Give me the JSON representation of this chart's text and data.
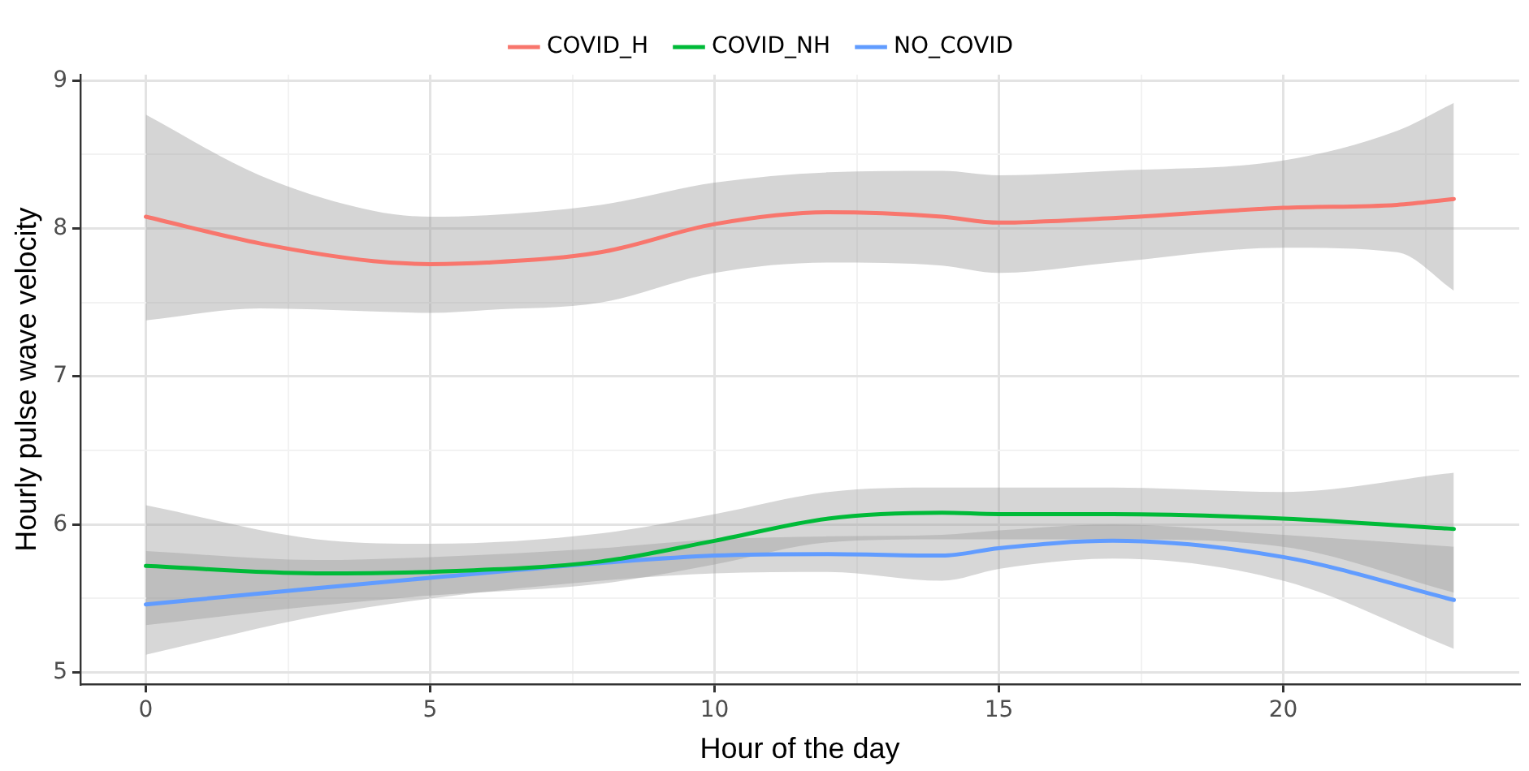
{
  "chart_data": {
    "type": "line",
    "xlabel": "Hour of the day",
    "ylabel": "Hourly pulse wave velocity",
    "xlim": [
      -1.15,
      24.15
    ],
    "xticks": [
      0,
      {
        "value": 2.5,
        "label": null
      },
      5,
      {
        "value": 7.5,
        "label": null
      },
      10,
      {
        "value": 12.5,
        "label": null
      },
      15,
      {
        "value": 17.5,
        "label": null
      },
      20,
      {
        "value": 22.5,
        "label": null
      }
    ],
    "ylim": [
      4.92,
      9.04
    ],
    "yticks": [
      5,
      {
        "value": 5.5,
        "label": null
      },
      6,
      {
        "value": 6.5,
        "label": null
      },
      7,
      {
        "value": 7.5,
        "label": null
      },
      8,
      {
        "value": 8.5,
        "label": null
      },
      9
    ],
    "grid": true,
    "legend": "top",
    "marker": "none",
    "line_style": "solid",
    "series": [
      {
        "name": "COVID_H",
        "color": "#f8766d",
        "x": [
          0,
          2,
          4,
          5,
          6,
          8,
          10,
          12,
          14,
          15,
          17,
          20,
          22,
          23
        ],
        "values": [
          8.08,
          7.9,
          7.78,
          7.76,
          7.77,
          7.84,
          8.03,
          8.11,
          8.08,
          8.04,
          8.07,
          8.14,
          8.16,
          8.2
        ],
        "lower": [
          7.38,
          7.46,
          7.44,
          7.43,
          7.45,
          7.5,
          7.7,
          7.77,
          7.75,
          7.7,
          7.77,
          7.87,
          7.84,
          7.58
        ],
        "upper": [
          8.77,
          8.36,
          8.12,
          8.08,
          8.09,
          8.16,
          8.31,
          8.38,
          8.39,
          8.36,
          8.39,
          8.46,
          8.66,
          8.85
        ]
      },
      {
        "name": "COVID_NH",
        "color": "#00ba38",
        "x": [
          0,
          3,
          5,
          8,
          10,
          12,
          14,
          15,
          17,
          20,
          23
        ],
        "values": [
          5.72,
          5.67,
          5.68,
          5.75,
          5.89,
          6.04,
          6.08,
          6.07,
          6.07,
          6.04,
          5.97
        ],
        "lower": [
          5.32,
          5.45,
          5.52,
          5.6,
          5.73,
          5.88,
          5.9,
          5.9,
          5.9,
          5.85,
          5.54
        ],
        "upper": [
          6.13,
          5.9,
          5.87,
          5.94,
          6.07,
          6.22,
          6.25,
          6.25,
          6.25,
          6.22,
          6.35
        ]
      },
      {
        "name": "NO_COVID",
        "color": "#619cff",
        "x": [
          0,
          3,
          5,
          8,
          10,
          12,
          14,
          15,
          17,
          20,
          23
        ],
        "values": [
          5.46,
          5.57,
          5.64,
          5.74,
          5.79,
          5.8,
          5.79,
          5.84,
          5.89,
          5.78,
          5.49
        ],
        "lower": [
          5.12,
          5.38,
          5.5,
          5.62,
          5.67,
          5.68,
          5.62,
          5.7,
          5.77,
          5.62,
          5.16
        ],
        "upper": [
          5.82,
          5.76,
          5.78,
          5.84,
          5.9,
          5.92,
          5.93,
          5.96,
          6.0,
          5.93,
          5.85
        ]
      }
    ]
  }
}
